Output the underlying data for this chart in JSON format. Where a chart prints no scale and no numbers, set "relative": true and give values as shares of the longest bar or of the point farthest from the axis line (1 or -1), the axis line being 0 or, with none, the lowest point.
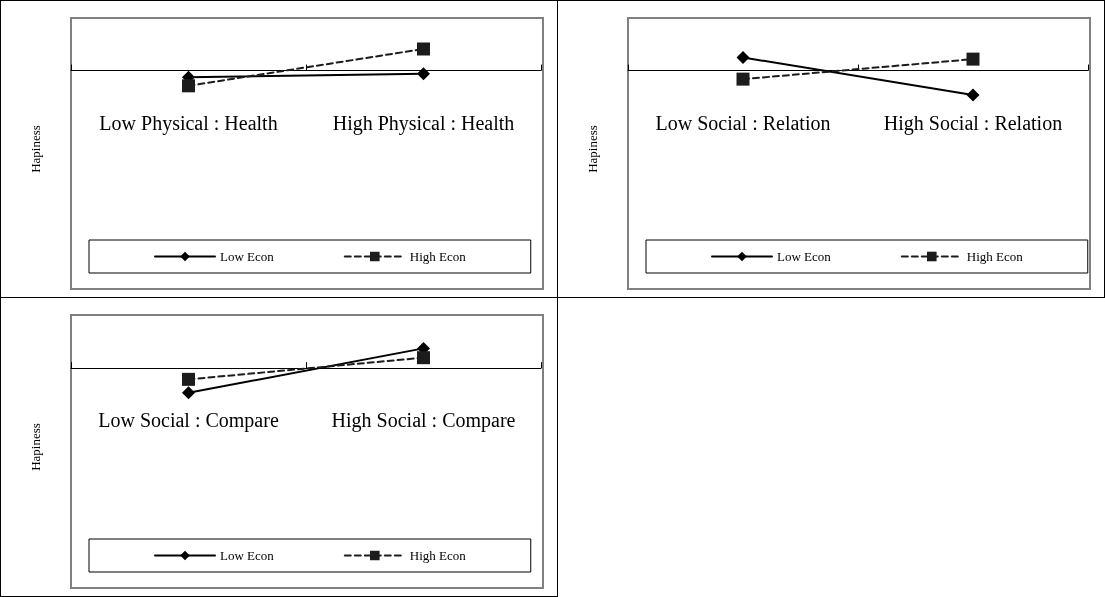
{
  "chart_data": [
    {
      "type": "line",
      "ylabel": "Hapiness",
      "categories": [
        "Low Physical : Health",
        "High Physical : Health"
      ],
      "relative": true,
      "legend": "bottom",
      "grid": false,
      "series": [
        {
          "name": "Low Econ",
          "color": "#000000",
          "marker": "diamond",
          "line_style": "solid",
          "values": [
            -0.23,
            -0.08
          ]
        },
        {
          "name": "High Econ",
          "color": "#1c1c1c",
          "marker": "square",
          "line_style": "dashed",
          "values": [
            -0.6,
            1
          ]
        }
      ]
    },
    {
      "type": "line",
      "ylabel": "Hapiness",
      "categories": [
        "Low Social : Relation",
        "High Social : Relation"
      ],
      "relative": true,
      "legend": "bottom",
      "grid": false,
      "series": [
        {
          "name": "Low Econ",
          "color": "#000000",
          "marker": "diamond",
          "line_style": "solid",
          "values": [
            0.63,
            -1
          ]
        },
        {
          "name": "High Econ",
          "color": "#1c1c1c",
          "marker": "square",
          "line_style": "dashed",
          "values": [
            -0.31,
            0.56
          ]
        }
      ]
    },
    {
      "type": "line",
      "ylabel": "Hapiness",
      "categories": [
        "Low Social : Compare",
        "High Social : Compare"
      ],
      "relative": true,
      "legend": "bottom",
      "grid": false,
      "series": [
        {
          "name": "Low Econ",
          "color": "#000000",
          "marker": "diamond",
          "line_style": "solid",
          "values": [
            -1,
            0.91
          ]
        },
        {
          "name": "High Econ",
          "color": "#1c1c1c",
          "marker": "square",
          "line_style": "dashed",
          "values": [
            -0.42,
            0.51
          ]
        }
      ]
    }
  ]
}
